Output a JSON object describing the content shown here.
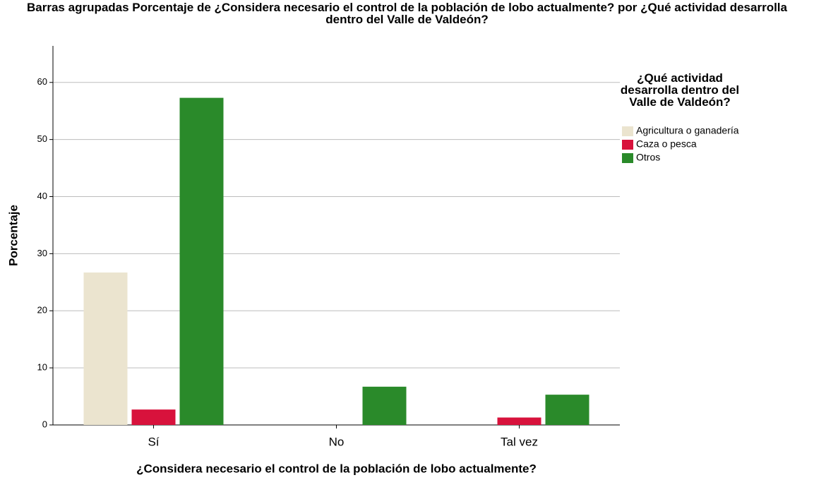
{
  "chart_data": {
    "type": "bar",
    "title": "Barras agrupadas Porcentaje de ¿Considera necesario el control de la población de lobo actualmente? por ¿Qué actividad desarrolla dentro del Valle de Valdeón?",
    "x_label": "¿Considera necesario el control de la población de lobo actualmente?",
    "y_label": "Porcentaje",
    "legend_title": "¿Qué actividad desarrolla dentro del Valle de Valdeón?",
    "categories": [
      "Sí",
      "No",
      "Tal vez"
    ],
    "series": [
      {
        "name": "Agricultura o ganadería",
        "color": "#ebe4cf",
        "values": [
          26.7,
          0,
          0
        ]
      },
      {
        "name": "Caza o pesca",
        "color": "#d8123c",
        "values": [
          2.7,
          0,
          1.3
        ]
      },
      {
        "name": "Otros",
        "color": "#2a8a2a",
        "values": [
          57.3,
          6.7,
          5.3
        ]
      }
    ],
    "ylim": [
      0,
      66.4
    ],
    "yticks": [
      0,
      10,
      20,
      30,
      40,
      50,
      60
    ],
    "grid": true,
    "legend": "right"
  }
}
